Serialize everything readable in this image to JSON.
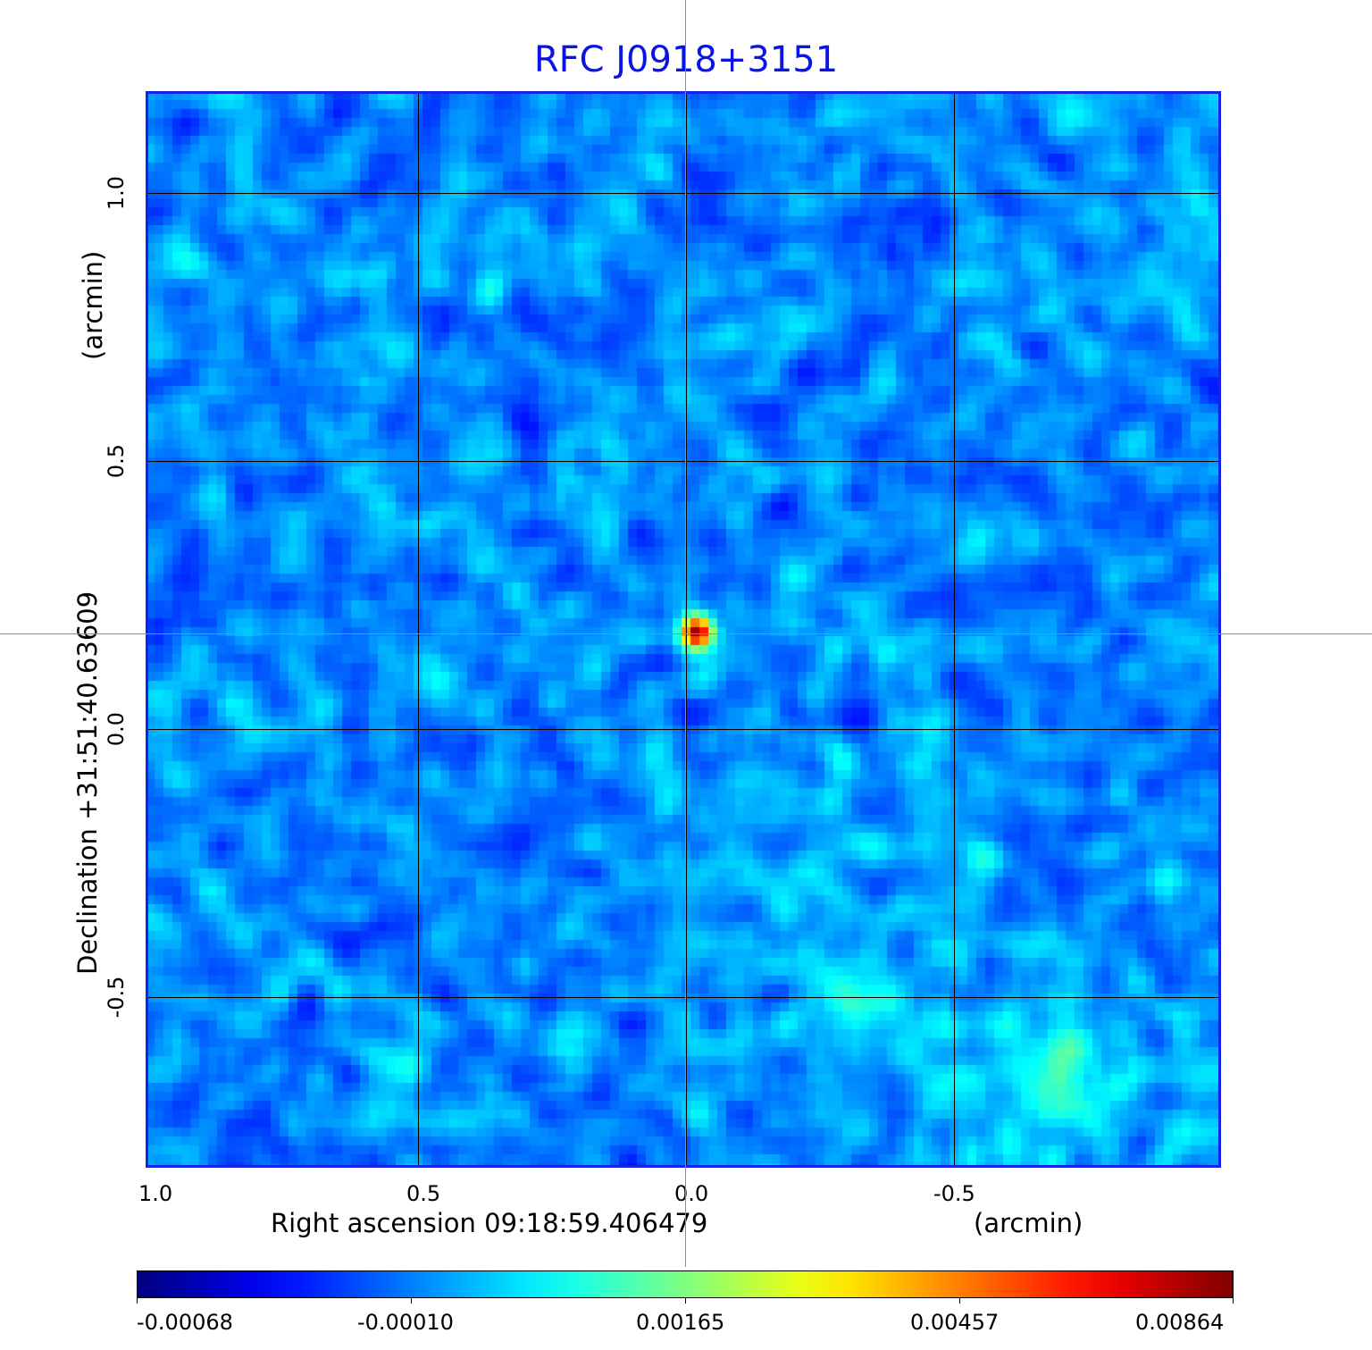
{
  "chart_data": {
    "type": "heatmap",
    "title": "RFC J0918+3151",
    "xlabel": "Right ascension  09:18:59.406479",
    "xunit": "(arcmin)",
    "ylabel": "Declination  +31:51:40.63609",
    "yunit": "(arcmin)",
    "xlim": [
      1.01,
      -1.0
    ],
    "ylim": [
      -0.82,
      1.19
    ],
    "xticks": [
      "1.0",
      "0.5",
      "0.0",
      "-0.5"
    ],
    "xtick_values": [
      1.0,
      0.5,
      0.0,
      -0.5
    ],
    "yticks": [
      "1.0",
      "0.5",
      "0.0",
      "-0.5"
    ],
    "ytick_values": [
      1.0,
      0.5,
      0.0,
      -0.5
    ],
    "grid": true,
    "colormap": "jet",
    "colorbar": {
      "ticks": [
        "-0.00068",
        "-0.00010",
        "0.00165",
        "0.00457",
        "0.00864"
      ],
      "range": [
        -0.00068,
        0.00864
      ]
    },
    "source_peak": {
      "x": -0.02,
      "y": 0.18,
      "value": 0.00864
    },
    "crosshair": {
      "x": 0.0,
      "y": 0.18
    },
    "colors": {
      "title": "#0a14e6",
      "frame": "#1423e6",
      "crosshair": "#30d030"
    }
  }
}
